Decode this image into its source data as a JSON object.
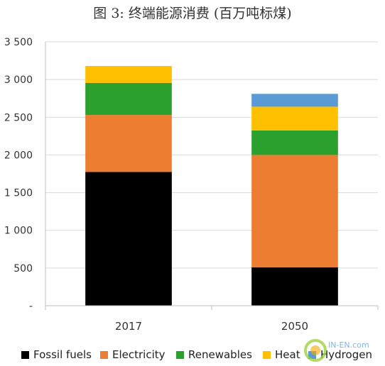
{
  "title": "图 3: 终端能源消费 (百万吨标煤)",
  "chart_data": {
    "type": "bar",
    "stacked": true,
    "categories": [
      "2017",
      "2050"
    ],
    "series": [
      {
        "name": "Fossil fuels",
        "color": "#000000",
        "values": [
          1775,
          510
        ]
      },
      {
        "name": "Electricity",
        "color": "#ED7D31",
        "values": [
          755,
          1490
        ]
      },
      {
        "name": "Renewables",
        "color": "#2CA02C",
        "values": [
          425,
          325
        ]
      },
      {
        "name": "Heat",
        "color": "#FFC000",
        "values": [
          225,
          315
        ]
      },
      {
        "name": "Hydrogen",
        "color": "#5B9BD5",
        "values": [
          0,
          170
        ]
      }
    ],
    "yticks": [
      "-",
      "500",
      "1 000",
      "1 500",
      "2 000",
      "2 500",
      "3 000",
      "3 500"
    ],
    "ylim": [
      0,
      3500
    ],
    "grid": true,
    "legend": "bottom"
  },
  "watermark": {
    "text": "IN-EN.com"
  }
}
